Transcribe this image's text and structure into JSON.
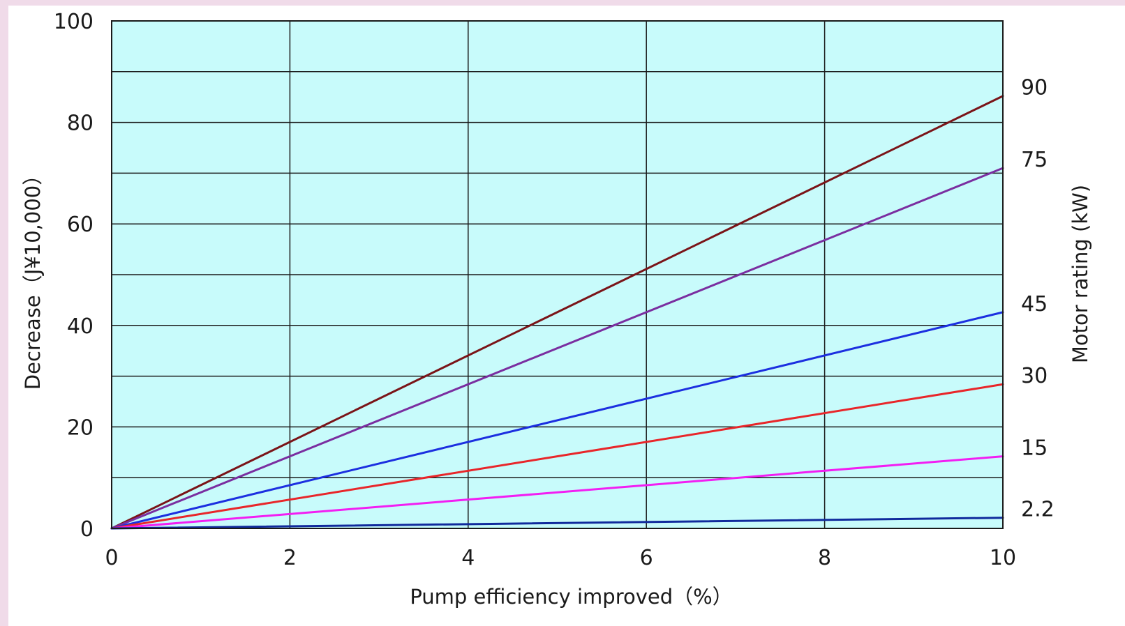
{
  "chart_data": {
    "type": "line",
    "title": "",
    "xlabel": "Pump efficiency improved（%）",
    "ylabel": "Decrease（J¥10,000）",
    "y2label": "Motor rating (kW)",
    "xlim": [
      0,
      10
    ],
    "ylim": [
      0,
      100
    ],
    "xticks": [
      "0",
      "2",
      "4",
      "6",
      "8",
      "10"
    ],
    "yticks": [
      "0",
      "20",
      "40",
      "60",
      "80",
      "100"
    ],
    "grid": true,
    "plot_background": "#c8fbfb",
    "series": [
      {
        "name": "90",
        "color": "#7a1418",
        "x": [
          0,
          10
        ],
        "y": [
          0,
          85.2
        ]
      },
      {
        "name": "75",
        "color": "#7a2ea0",
        "x": [
          0,
          10
        ],
        "y": [
          0,
          71.0
        ]
      },
      {
        "name": "45",
        "color": "#1c2fe0",
        "x": [
          0,
          10
        ],
        "y": [
          0,
          42.6
        ]
      },
      {
        "name": "30",
        "color": "#e8262a",
        "x": [
          0,
          10
        ],
        "y": [
          0,
          28.4
        ]
      },
      {
        "name": "15",
        "color": "#f21ef2",
        "x": [
          0,
          10
        ],
        "y": [
          0,
          14.2
        ]
      },
      {
        "name": "2.2",
        "color": "#102a9c",
        "x": [
          0,
          10
        ],
        "y": [
          0,
          2.1
        ]
      }
    ]
  }
}
